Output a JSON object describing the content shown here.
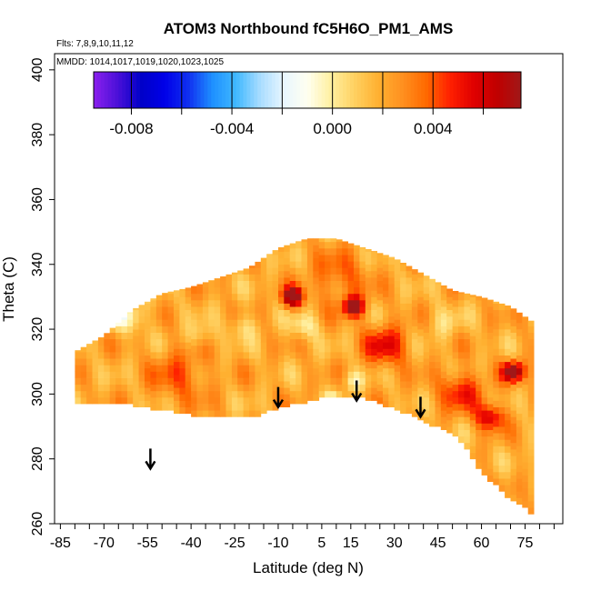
{
  "chart_data": {
    "type": "heatmap",
    "title": "ATOM3 Northbound fC5H6O_PM1_AMS",
    "flights_note": "Flts: 7,8,9,10,11,12",
    "dates_note": "MMDD: 1014,1017,1019,1020,1023,1025",
    "xlabel": "Latitude (deg N)",
    "ylabel": "Theta (C)",
    "xlim": [
      -87,
      88
    ],
    "ylim": [
      260,
      405
    ],
    "xticks": [
      -85,
      -70,
      -55,
      -40,
      -25,
      -10,
      5,
      15,
      30,
      45,
      60,
      75
    ],
    "xtick_labels": [
      "-85",
      "-70",
      "-55",
      "-40",
      "-25",
      "-10",
      "5",
      "15",
      "30",
      "45",
      "60",
      "75"
    ],
    "yticks": [
      260,
      280,
      300,
      320,
      340,
      360,
      380,
      400
    ],
    "ytick_labels": [
      "260",
      "280",
      "300",
      "320",
      "340",
      "360",
      "380",
      "400"
    ],
    "colorbar": {
      "min": -0.0095,
      "max": 0.0075,
      "ticks": [
        -0.008,
        -0.004,
        0.0,
        0.004
      ],
      "tick_labels": [
        "-0.008",
        "-0.004",
        "0.000",
        "0.004"
      ],
      "colors": [
        "#8b20ee",
        "#4b10d8",
        "#0000c8",
        "#0000e8",
        "#1030f0",
        "#1e90ff",
        "#40b8ff",
        "#a8dcff",
        "#e8f6ff",
        "#fffff0",
        "#fff0a0",
        "#ffd060",
        "#ffb030",
        "#ff9020",
        "#ff6a00",
        "#ff2000",
        "#e00000",
        "#c00000",
        "#a01818"
      ]
    },
    "arrows": [
      {
        "lat": -54,
        "theta": 277
      },
      {
        "lat": -10,
        "theta": 296
      },
      {
        "lat": 17,
        "theta": 298
      },
      {
        "lat": 39,
        "theta": 293
      }
    ],
    "field_note": "curtain of mostly small positive values (yellow/orange) over latitudes -80 to 78 and theta 262-348, with localized negative (blue) and high positive (red) cells"
  }
}
